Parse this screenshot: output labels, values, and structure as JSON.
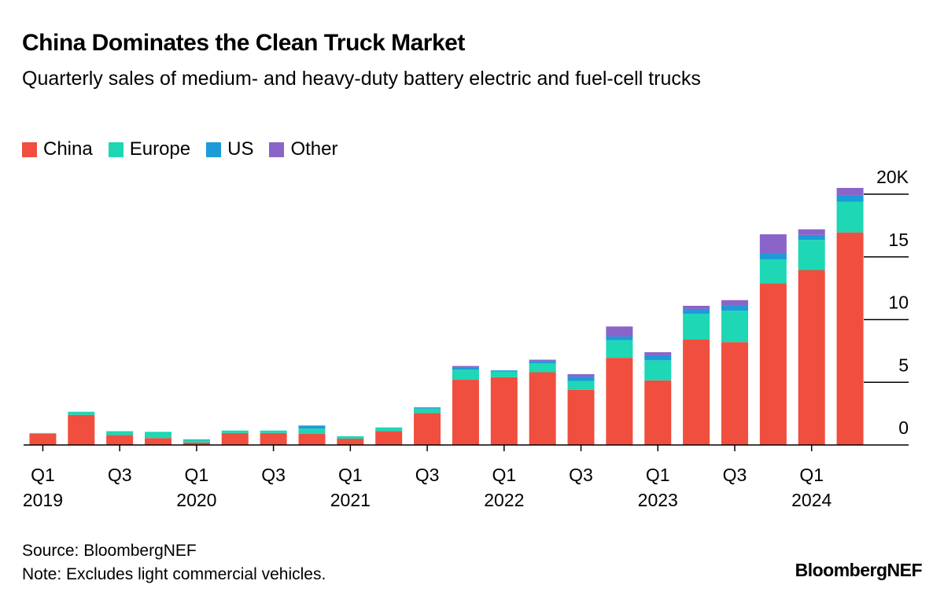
{
  "chart_data": {
    "type": "stacked-bar",
    "title": "China Dominates the Clean Truck Market",
    "subtitle": "Quarterly sales of medium- and heavy-duty battery electric and fuel-cell trucks",
    "source": "Source: BloombergNEF",
    "note": "Note: Excludes light commercial vehicles.",
    "brand": "BloombergNEF",
    "categories": [
      "Q1",
      null,
      "Q3",
      null,
      "Q1",
      null,
      "Q3",
      null,
      "Q1",
      null,
      "Q3",
      null,
      "Q1",
      null,
      "Q3",
      null,
      "Q1",
      null,
      "Q3",
      null,
      "Q1",
      null
    ],
    "category_years": [
      "2019",
      null,
      null,
      null,
      "2020",
      null,
      null,
      null,
      "2021",
      null,
      null,
      null,
      "2022",
      null,
      null,
      null,
      "2023",
      null,
      null,
      null,
      "2024",
      null
    ],
    "series": [
      {
        "name": "China",
        "color": "#f04e3e",
        "values": [
          0.9,
          2.4,
          0.8,
          0.55,
          0.2,
          0.95,
          0.95,
          0.9,
          0.5,
          1.1,
          2.55,
          5.2,
          5.4,
          5.8,
          4.4,
          6.95,
          5.15,
          8.4,
          8.2,
          12.9,
          13.95,
          16.95
        ]
      },
      {
        "name": "Europe",
        "color": "#1ed7b4",
        "values": [
          0.05,
          0.25,
          0.3,
          0.5,
          0.2,
          0.2,
          0.2,
          0.4,
          0.2,
          0.3,
          0.35,
          0.8,
          0.45,
          0.7,
          0.7,
          1.4,
          1.6,
          2.05,
          2.5,
          1.9,
          2.4,
          2.45
        ]
      },
      {
        "name": "US",
        "color": "#1b9bd8",
        "values": [
          0,
          0,
          0,
          0,
          0.05,
          0,
          0,
          0.25,
          0,
          0,
          0.1,
          0.15,
          0.1,
          0.2,
          0.35,
          0.3,
          0.4,
          0.4,
          0.4,
          0.5,
          0.4,
          0.5
        ]
      },
      {
        "name": "Other",
        "color": "#8a64c8",
        "values": [
          0,
          0,
          0,
          0,
          0,
          0,
          0,
          0,
          0,
          0,
          0,
          0.15,
          0,
          0.1,
          0.2,
          0.8,
          0.25,
          0.25,
          0.45,
          1.5,
          0.45,
          0.6
        ]
      }
    ],
    "ylim": [
      0,
      20
    ],
    "yticks": [
      0,
      5,
      10,
      15,
      {
        "value": 20,
        "label": "20K"
      }
    ],
    "y_axis_side": "right",
    "grid": true
  }
}
